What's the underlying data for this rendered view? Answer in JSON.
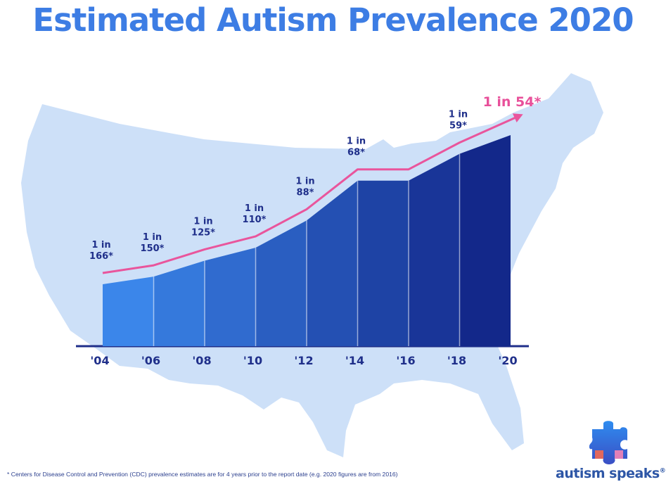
{
  "chart_data": {
    "type": "area",
    "title": "Estimated Autism Prevalence 2020",
    "categories": [
      "'04",
      "'06",
      "'08",
      "'10",
      "'12",
      "'14",
      "'16",
      "'18",
      "'20"
    ],
    "prevalence_one_in": [
      166,
      150,
      125,
      110,
      88,
      68,
      68,
      59,
      54
    ],
    "labels": [
      {
        "line1": "1 in",
        "line2": "166*"
      },
      {
        "line1": "1 in",
        "line2": "150*"
      },
      {
        "line1": "1 in",
        "line2": "125*"
      },
      {
        "line1": "1 in",
        "line2": "110*"
      },
      {
        "line1": "1 in",
        "line2": "88*"
      },
      {
        "line1": "1 in",
        "line2": "68*"
      },
      {
        "line1": "1 in",
        "line2": "59*"
      }
    ],
    "callout": "1 in 54*",
    "xlabel": "",
    "ylabel": "",
    "legend": "none",
    "colors": {
      "bar_light": "#3b86ea",
      "bar_dark": "#13288a",
      "trend_line": "#e9559c",
      "map_fill": "#cde0f8",
      "title": "#3d7de4",
      "axis": "#1f2f8a"
    }
  },
  "footnote": "* Centers for Disease Control and Prevention (CDC) prevalence estimates are for 4 years prior to the report date (e.g. 2020 figures are from 2016)",
  "brand": {
    "name": "autism speaks",
    "trademark": "®",
    "logo_icon": "puzzle-piece-icon"
  }
}
